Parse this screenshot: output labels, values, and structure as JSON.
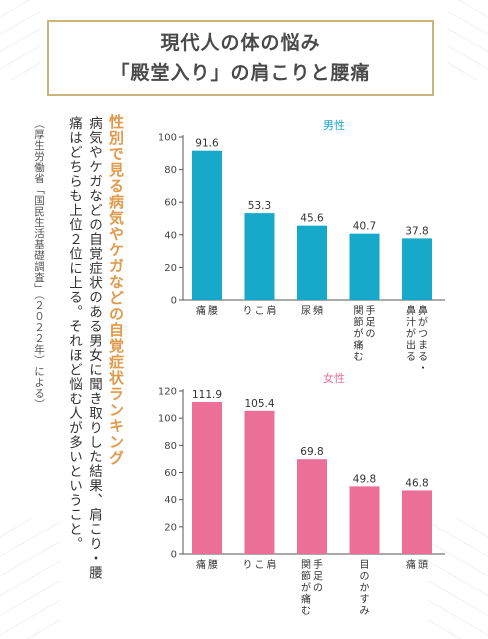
{
  "title": {
    "line1": "現代人の体の悩み",
    "line2": "「殿堂入り」の肩こりと腰痛"
  },
  "sidebar": {
    "heading": "性別で見る病気やケガなどの自覚症状ランキング",
    "body_line1": "病気やケガなどの自覚症状のある男女に聞き取りした結果、肩こり・腰",
    "body_line2": "痛はどちらも上位２位に上る。それほど悩む人が多いということ。",
    "source": "（厚生労働省「国民生活基礎調査」（２０２２年）による）"
  },
  "colors": {
    "male": "#17a9c9",
    "female": "#ec6f97",
    "accent": "#e09a4c",
    "frame": "#c9b47a"
  },
  "chart_data": [
    {
      "type": "bar",
      "title": "男性",
      "categories": [
        [
          "腰",
          "痛"
        ],
        [
          "肩",
          "こ",
          "り"
        ],
        [
          "頻",
          "尿"
        ],
        [
          "手足の",
          "関節が痛む"
        ],
        [
          "鼻がつまる・",
          "鼻汁が出る"
        ]
      ],
      "values": [
        91.6,
        53.3,
        45.6,
        40.7,
        37.8
      ],
      "ylim": [
        0,
        100
      ],
      "yticks": [
        0,
        20,
        40,
        60,
        80,
        100
      ],
      "grid": false
    },
    {
      "type": "bar",
      "title": "女性",
      "categories": [
        [
          "腰",
          "痛"
        ],
        [
          "肩",
          "こ",
          "り"
        ],
        [
          "手足の",
          "関節が痛む"
        ],
        [
          "目のかすみ"
        ],
        [
          "頭",
          "痛"
        ]
      ],
      "values": [
        111.9,
        105.4,
        69.8,
        49.8,
        46.8
      ],
      "ylim": [
        0,
        120
      ],
      "yticks": [
        0,
        20,
        40,
        60,
        80,
        100,
        120
      ],
      "grid": false
    }
  ]
}
